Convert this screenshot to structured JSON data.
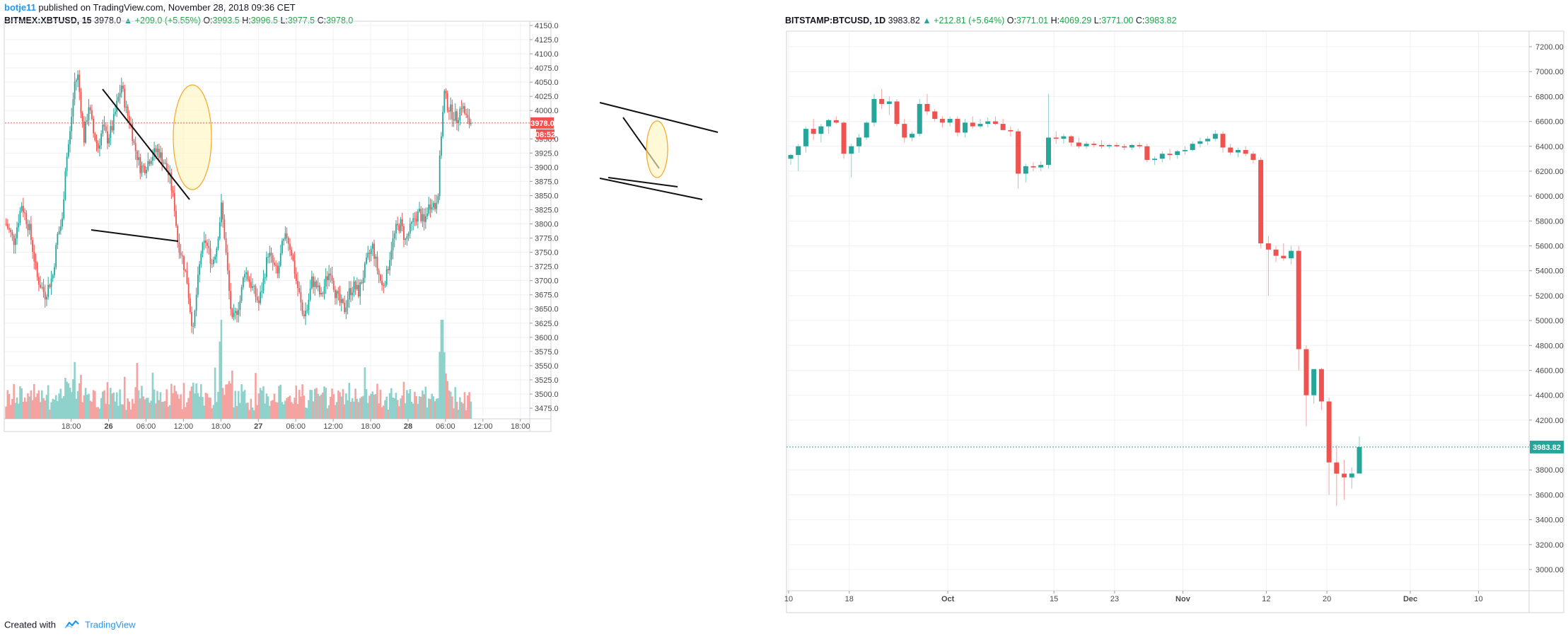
{
  "header": {
    "author": "botje11",
    "published_text": "published on TradingView.com, November 28, 2018 09:36 CET"
  },
  "footer": {
    "created_with": "Created with",
    "brand": "TradingView"
  },
  "colors": {
    "up": "#26a69a",
    "down": "#ef5350",
    "vol_up": "#8fd1cb",
    "vol_down": "#f5a3a1",
    "left_price_line": "#ef5350",
    "right_price_line": "#26a69a",
    "annotation_fill": "#fff6c2",
    "annotation_stroke": "#f5a623"
  },
  "left": {
    "symbol": "BITMEX:XBTUSD, 15",
    "last": "3978.0",
    "change": "+209.0 (+5.55%)",
    "open": "3993.5",
    "high": "3996.5",
    "low": "3977.5",
    "close": "3978.0",
    "price_tag": "3978.0",
    "countdown_tag": "08:52"
  },
  "right": {
    "symbol": "BITSTAMP:BTCUSD, 1D",
    "last": "3983.82",
    "change": "+212.81 (+5.64%)",
    "open": "3771.01",
    "high": "4069.29",
    "low": "3771.00",
    "close": "3983.82",
    "price_tag": "3983.82"
  },
  "chart_data": [
    {
      "type": "candlestick",
      "symbol": "BITMEX:XBTUSD",
      "interval": "15",
      "y_ticks": [
        4150,
        4125,
        4100,
        4075,
        4050,
        4025,
        4000,
        3950,
        3925,
        3900,
        3875,
        3850,
        3825,
        3800,
        3775,
        3750,
        3725,
        3700,
        3675,
        3650,
        3625,
        3600,
        3575,
        3550,
        3525,
        3500,
        3475
      ],
      "y_tick_labels": [
        "4150.0",
        "4125.0",
        "4100.0",
        "4075.0",
        "4050.0",
        "4025.0",
        "4000.0",
        "3950.0",
        "3925.0",
        "3900.0",
        "3875.0",
        "3850.0",
        "3825.0",
        "3800.0",
        "3775.0",
        "3750.0",
        "3725.0",
        "3700.0",
        "3675.0",
        "3650.0",
        "3625.0",
        "3600.0",
        "3575.0",
        "3550.0",
        "3525.0",
        "3500.0",
        "3475.0"
      ],
      "ylim": [
        3455,
        4155
      ],
      "x_ticks": [
        {
          "label": "18:00",
          "bar": 42,
          "bold": false
        },
        {
          "label": "26",
          "bar": 66,
          "bold": true
        },
        {
          "label": "06:00",
          "bar": 90,
          "bold": false
        },
        {
          "label": "12:00",
          "bar": 114,
          "bold": false
        },
        {
          "label": "18:00",
          "bar": 138,
          "bold": false
        },
        {
          "label": "27",
          "bar": 162,
          "bold": true
        },
        {
          "label": "06:00",
          "bar": 186,
          "bold": false
        },
        {
          "label": "12:00",
          "bar": 210,
          "bold": false
        },
        {
          "label": "18:00",
          "bar": 234,
          "bold": false
        },
        {
          "label": "28",
          "bar": 258,
          "bold": true
        },
        {
          "label": "06:00",
          "bar": 282,
          "bold": false
        },
        {
          "label": "12:00",
          "bar": 306,
          "bold": false
        },
        {
          "label": "18:00",
          "bar": 330,
          "bold": false
        }
      ],
      "total_slots": 336,
      "keypoints": [
        [
          0,
          3800
        ],
        [
          5,
          3770
        ],
        [
          10,
          3835
        ],
        [
          15,
          3790
        ],
        [
          20,
          3705
        ],
        [
          25,
          3675
        ],
        [
          30,
          3710
        ],
        [
          33,
          3780
        ],
        [
          36,
          3805
        ],
        [
          38,
          3900
        ],
        [
          41,
          3960
        ],
        [
          44,
          4050
        ],
        [
          46,
          4060
        ],
        [
          50,
          3950
        ],
        [
          53,
          4010
        ],
        [
          56,
          3960
        ],
        [
          59,
          3935
        ],
        [
          62,
          3970
        ],
        [
          65,
          3950
        ],
        [
          68,
          3970
        ],
        [
          71,
          4010
        ],
        [
          74,
          4045
        ],
        [
          77,
          4000
        ],
        [
          80,
          3975
        ],
        [
          82,
          3940
        ],
        [
          86,
          3900
        ],
        [
          89,
          3900
        ],
        [
          93,
          3920
        ],
        [
          97,
          3930
        ],
        [
          101,
          3910
        ],
        [
          105,
          3880
        ],
        [
          108,
          3830
        ],
        [
          110,
          3770
        ],
        [
          113,
          3740
        ],
        [
          116,
          3700
        ],
        [
          118,
          3650
        ],
        [
          120,
          3610
        ],
        [
          122,
          3675
        ],
        [
          125,
          3750
        ],
        [
          128,
          3770
        ],
        [
          132,
          3730
        ],
        [
          135,
          3760
        ],
        [
          138,
          3830
        ],
        [
          140,
          3780
        ],
        [
          143,
          3680
        ],
        [
          145,
          3625
        ],
        [
          147,
          3640
        ],
        [
          150,
          3665
        ],
        [
          153,
          3720
        ],
        [
          156,
          3700
        ],
        [
          159,
          3680
        ],
        [
          162,
          3660
        ],
        [
          165,
          3700
        ],
        [
          168,
          3750
        ],
        [
          171,
          3730
        ],
        [
          174,
          3710
        ],
        [
          177,
          3760
        ],
        [
          180,
          3780
        ],
        [
          183,
          3750
        ],
        [
          186,
          3700
        ],
        [
          188,
          3675
        ],
        [
          190,
          3640
        ],
        [
          193,
          3650
        ],
        [
          196,
          3700
        ],
        [
          199,
          3690
        ],
        [
          202,
          3670
        ],
        [
          205,
          3700
        ],
        [
          208,
          3720
        ],
        [
          211,
          3680
        ],
        [
          214,
          3660
        ],
        [
          217,
          3650
        ],
        [
          220,
          3680
        ],
        [
          223,
          3690
        ],
        [
          226,
          3680
        ],
        [
          229,
          3710
        ],
        [
          232,
          3740
        ],
        [
          235,
          3760
        ],
        [
          238,
          3720
        ],
        [
          241,
          3690
        ],
        [
          244,
          3710
        ],
        [
          247,
          3760
        ],
        [
          250,
          3790
        ],
        [
          253,
          3800
        ],
        [
          256,
          3770
        ],
        [
          259,
          3790
        ],
        [
          262,
          3810
        ],
        [
          265,
          3820
        ],
        [
          268,
          3800
        ],
        [
          270,
          3825
        ],
        [
          273,
          3840
        ],
        [
          275,
          3830
        ],
        [
          277,
          3860
        ],
        [
          279,
          3960
        ],
        [
          281,
          4030
        ],
        [
          283,
          4010
        ],
        [
          286,
          3995
        ],
        [
          289,
          3985
        ],
        [
          292,
          4010
        ],
        [
          294,
          3995
        ],
        [
          296,
          3980
        ],
        [
          298,
          3978
        ]
      ],
      "volume_spikes": [
        [
          94,
          2.2
        ],
        [
          134,
          2.6
        ],
        [
          138,
          3.2
        ],
        [
          137,
          2.4
        ],
        [
          145,
          1.8
        ],
        [
          160,
          1.6
        ],
        [
          191,
          1.5
        ],
        [
          230,
          1.4
        ],
        [
          280,
          3.5
        ],
        [
          279,
          2.6
        ],
        [
          282,
          2.2
        ],
        [
          84,
          1.6
        ],
        [
          44,
          1.5
        ],
        [
          120,
          1.7
        ]
      ],
      "annotations": [
        {
          "shape": "ellipse",
          "note": "highlight near 26 morning top"
        },
        {
          "shape": "ellipse",
          "note": "highlight near 28 morning top"
        }
      ],
      "last_price": 3978.0
    },
    {
      "type": "candlestick",
      "symbol": "BITSTAMP:BTCUSD",
      "interval": "1D",
      "y_ticks": [
        7200,
        7000,
        6800,
        6600,
        6400,
        6200,
        6000,
        5800,
        5600,
        5400,
        5200,
        5000,
        4800,
        4600,
        4400,
        4200,
        4000,
        3800,
        3600,
        3400,
        3200,
        3000
      ],
      "y_tick_labels": [
        "7200.00",
        "7000.00",
        "6800.00",
        "6600.00",
        "6400.00",
        "6200.00",
        "6000.00",
        "5800.00",
        "5600.00",
        "5400.00",
        "5200.00",
        "5000.00",
        "4800.00",
        "4600.00",
        "4400.00",
        "4200.00",
        "4000.00",
        "3800.00",
        "3600.00",
        "3400.00",
        "3200.00",
        "3000.00"
      ],
      "ylim": [
        2770,
        7320
      ],
      "x_ticks": [
        {
          "label": "10",
          "day": 0,
          "bold": false
        },
        {
          "label": "18",
          "day": 8,
          "bold": false
        },
        {
          "label": "Oct",
          "day": 21,
          "bold": true
        },
        {
          "label": "15",
          "day": 35,
          "bold": false
        },
        {
          "label": "23",
          "day": 43,
          "bold": false
        },
        {
          "label": "Nov",
          "day": 52,
          "bold": true
        },
        {
          "label": "12",
          "day": 63,
          "bold": false
        },
        {
          "label": "20",
          "day": 71,
          "bold": false
        },
        {
          "label": "Dec",
          "day": 82,
          "bold": true
        },
        {
          "label": "10",
          "day": 91,
          "bold": false
        }
      ],
      "total_days": 98,
      "ohlc": [
        [
          6300,
          6340,
          6250,
          6330
        ],
        [
          6330,
          6420,
          6200,
          6400
        ],
        [
          6400,
          6560,
          6350,
          6540
        ],
        [
          6540,
          6620,
          6450,
          6500
        ],
        [
          6500,
          6580,
          6430,
          6560
        ],
        [
          6560,
          6620,
          6500,
          6610
        ],
        [
          6610,
          6640,
          6580,
          6590
        ],
        [
          6590,
          6600,
          6300,
          6340
        ],
        [
          6340,
          6420,
          6150,
          6400
        ],
        [
          6400,
          6500,
          6350,
          6470
        ],
        [
          6470,
          6600,
          6450,
          6590
        ],
        [
          6590,
          6820,
          6560,
          6780
        ],
        [
          6780,
          6860,
          6700,
          6740
        ],
        [
          6740,
          6800,
          6650,
          6760
        ],
        [
          6760,
          6780,
          6560,
          6580
        ],
        [
          6580,
          6620,
          6430,
          6470
        ],
        [
          6470,
          6520,
          6440,
          6500
        ],
        [
          6500,
          6780,
          6480,
          6740
        ],
        [
          6740,
          6820,
          6650,
          6680
        ],
        [
          6680,
          6700,
          6600,
          6620
        ],
        [
          6620,
          6640,
          6550,
          6590
        ],
        [
          6590,
          6640,
          6560,
          6620
        ],
        [
          6620,
          6640,
          6480,
          6510
        ],
        [
          6510,
          6620,
          6470,
          6590
        ],
        [
          6590,
          6640,
          6540,
          6560
        ],
        [
          6560,
          6620,
          6540,
          6580
        ],
        [
          6580,
          6630,
          6550,
          6600
        ],
        [
          6600,
          6640,
          6570,
          6580
        ],
        [
          6580,
          6620,
          6540,
          6530
        ],
        [
          6530,
          6560,
          6480,
          6520
        ],
        [
          6520,
          6540,
          6060,
          6180
        ],
        [
          6180,
          6260,
          6110,
          6240
        ],
        [
          6240,
          6270,
          6200,
          6230
        ],
        [
          6230,
          6280,
          6200,
          6250
        ],
        [
          6250,
          6820,
          6220,
          6470
        ],
        [
          6470,
          6520,
          6420,
          6460
        ],
        [
          6460,
          6500,
          6420,
          6480
        ],
        [
          6480,
          6490,
          6400,
          6430
        ],
        [
          6430,
          6470,
          6380,
          6400
        ],
        [
          6400,
          6440,
          6380,
          6420
        ],
        [
          6420,
          6440,
          6390,
          6410
        ],
        [
          6410,
          6450,
          6380,
          6400
        ],
        [
          6400,
          6420,
          6380,
          6410
        ],
        [
          6410,
          6430,
          6390,
          6400
        ],
        [
          6400,
          6420,
          6370,
          6390
        ],
        [
          6390,
          6420,
          6370,
          6410
        ],
        [
          6410,
          6430,
          6380,
          6400
        ],
        [
          6400,
          6420,
          6270,
          6290
        ],
        [
          6290,
          6320,
          6250,
          6300
        ],
        [
          6300,
          6360,
          6270,
          6340
        ],
        [
          6340,
          6380,
          6290,
          6330
        ],
        [
          6330,
          6370,
          6300,
          6360
        ],
        [
          6360,
          6400,
          6330,
          6370
        ],
        [
          6370,
          6440,
          6360,
          6420
        ],
        [
          6420,
          6470,
          6390,
          6440
        ],
        [
          6440,
          6480,
          6410,
          6460
        ],
        [
          6460,
          6530,
          6440,
          6500
        ],
        [
          6500,
          6520,
          6350,
          6390
        ],
        [
          6390,
          6420,
          6330,
          6350
        ],
        [
          6350,
          6390,
          6310,
          6370
        ],
        [
          6370,
          6400,
          6320,
          6340
        ],
        [
          6340,
          6360,
          6260,
          6290
        ],
        [
          6290,
          6310,
          5580,
          5620
        ],
        [
          5620,
          5680,
          5200,
          5570
        ],
        [
          5570,
          5600,
          5470,
          5520
        ],
        [
          5520,
          5620,
          5480,
          5500
        ],
        [
          5500,
          5600,
          5450,
          5560
        ],
        [
          5560,
          5600,
          4600,
          4770
        ],
        [
          4770,
          4800,
          4150,
          4400
        ],
        [
          4400,
          4600,
          4330,
          4610
        ],
        [
          4610,
          4620,
          4280,
          4350
        ],
        [
          4350,
          4380,
          3600,
          3860
        ],
        [
          3860,
          4000,
          3510,
          3770
        ],
        [
          3770,
          3880,
          3560,
          3740
        ],
        [
          3740,
          3820,
          3650,
          3771
        ],
        [
          3771,
          4069,
          3771,
          3984
        ]
      ],
      "last_price": 3983.82
    }
  ]
}
